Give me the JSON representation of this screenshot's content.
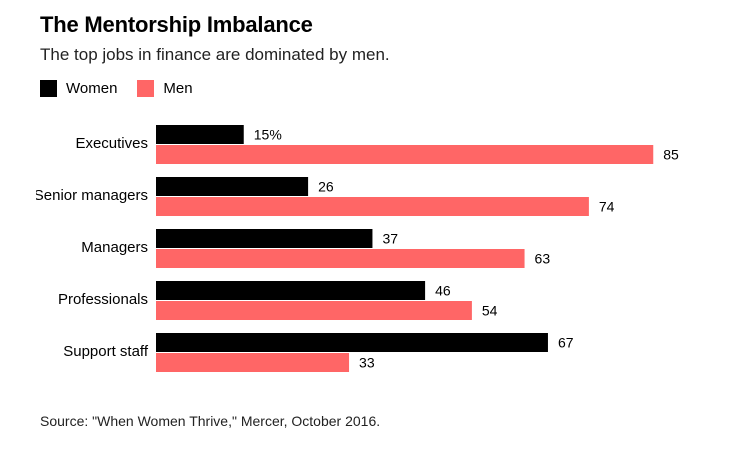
{
  "chart_data": {
    "type": "bar",
    "orientation": "horizontal",
    "title": "The Mentorship Imbalance",
    "subtitle": "The top jobs in finance are dominated by men.",
    "categories": [
      "Executives",
      "Senior managers",
      "Managers",
      "Professionals",
      "Support staff"
    ],
    "series": [
      {
        "name": "Women",
        "color": "#000000",
        "values": [
          15,
          26,
          37,
          46,
          67
        ],
        "labels": [
          "15%",
          "26",
          "37",
          "46",
          "67"
        ]
      },
      {
        "name": "Men",
        "color": "#ff6666",
        "values": [
          85,
          74,
          63,
          54,
          33
        ],
        "labels": [
          "85",
          "74",
          "63",
          "54",
          "33"
        ]
      }
    ],
    "xlim": [
      0,
      85
    ],
    "grid": false,
    "legend": "top-left",
    "source": "Source: \"When Women Thrive,\" Mercer, October 2016."
  }
}
